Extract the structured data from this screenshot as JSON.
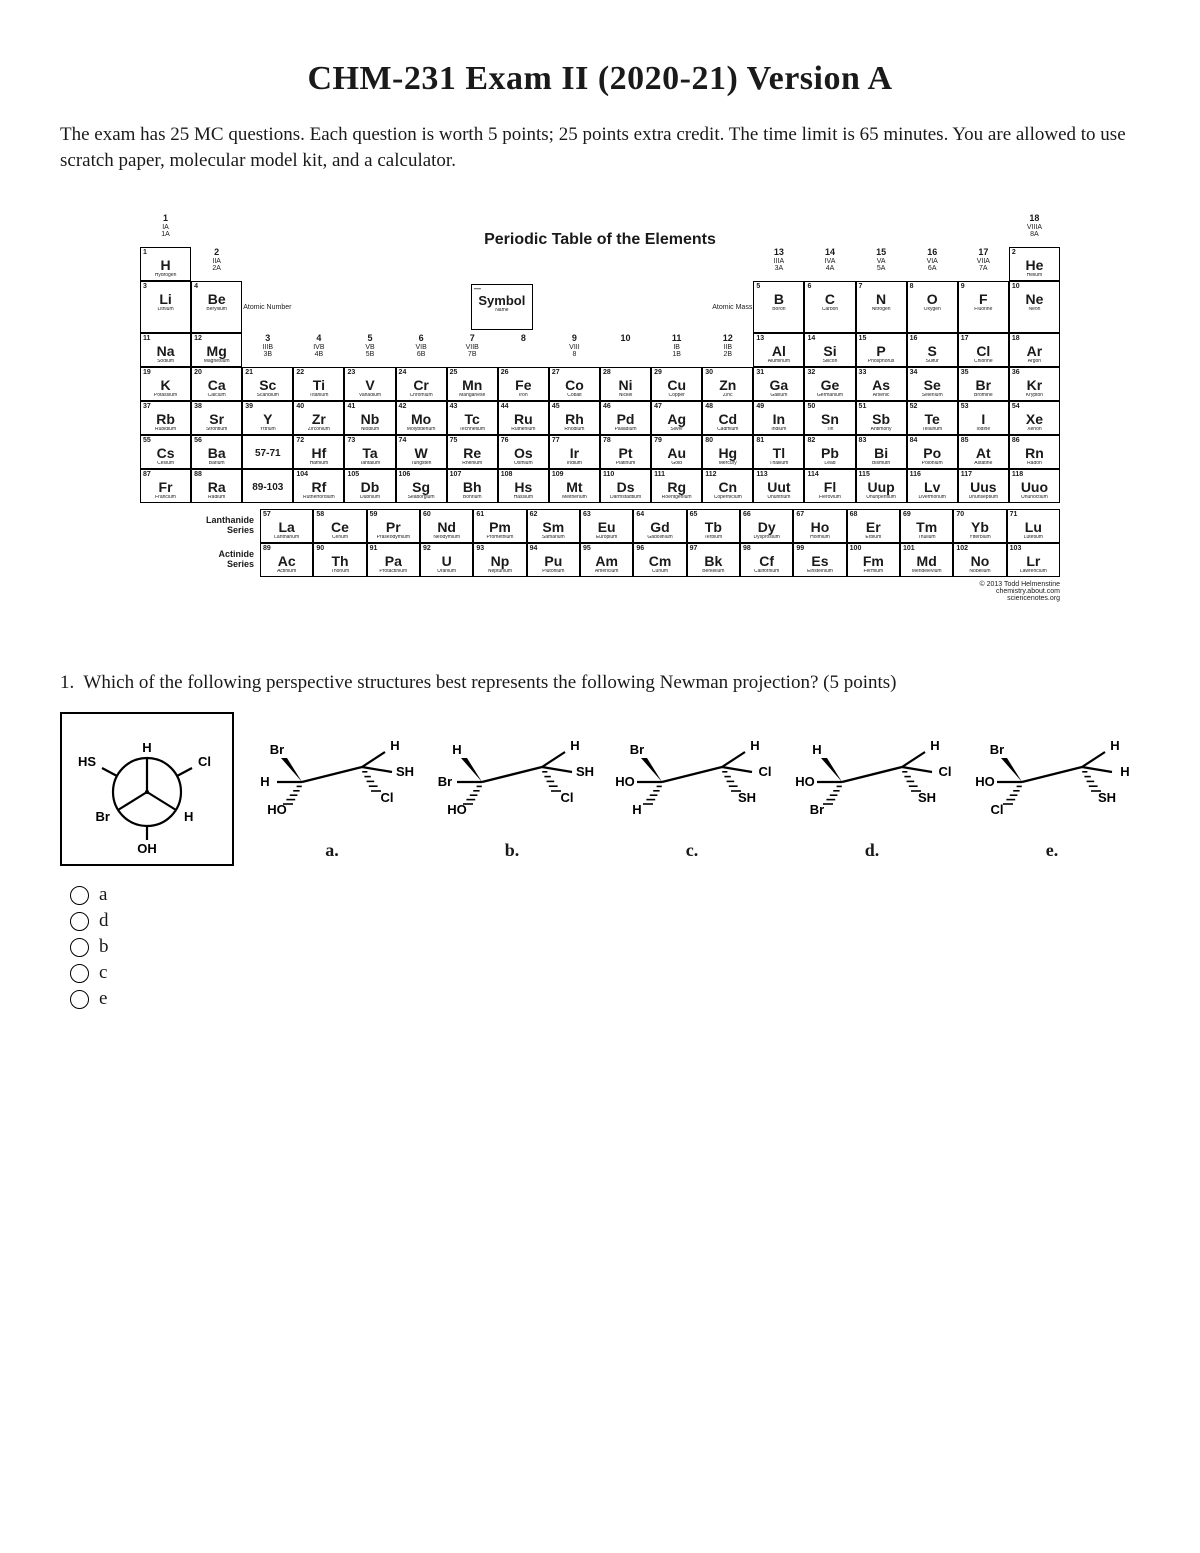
{
  "title": "CHM-231 Exam II (2020-21) Version A",
  "instructions": "The exam has 25 MC questions.  Each question is worth 5 points; 25 points extra credit.  The time limit is 65 minutes.  You are allowed to use scratch paper, molecular model kit, and a calculator.",
  "periodic_table": {
    "heading": "Periodic Table of the Elements",
    "group_top": [
      "1\nIA\n1A"
    ],
    "groups_top_right": {
      "13": "13\nIIIA\n3A",
      "14": "14\nIVA\n4A",
      "15": "15\nVA\n5A",
      "16": "16\nVIA\n6A",
      "17": "17\nVIIA\n7A",
      "18": "18\nVIIIA\n8A"
    },
    "groups_mid": {
      "2": "2\nIIA\n2A",
      "3": "3\nIIIB\n3B",
      "4": "4\nIVB\n4B",
      "5": "5\nVB\n5B",
      "6": "6\nVIB\n6B",
      "7": "7\nVIIB\n7B",
      "8": "8",
      "9": "9\nVIII\n8",
      "10": "10",
      "11": "11\nIB\n1B",
      "12": "12\nIIB\n2B"
    },
    "legend": {
      "top": "Atomic\nNumber",
      "mid": "Symbol",
      "name": "Name",
      "mass": "Atomic Mass"
    },
    "elements": [
      [
        1,
        "H",
        "Hydrogen"
      ],
      [
        2,
        "He",
        "Helium"
      ],
      [
        3,
        "Li",
        "Lithium"
      ],
      [
        4,
        "Be",
        "Beryllium"
      ],
      [
        5,
        "B",
        "Boron"
      ],
      [
        6,
        "C",
        "Carbon"
      ],
      [
        7,
        "N",
        "Nitrogen"
      ],
      [
        8,
        "O",
        "Oxygen"
      ],
      [
        9,
        "F",
        "Fluorine"
      ],
      [
        10,
        "Ne",
        "Neon"
      ],
      [
        11,
        "Na",
        "Sodium"
      ],
      [
        12,
        "Mg",
        "Magnesium"
      ],
      [
        13,
        "Al",
        "Aluminum"
      ],
      [
        14,
        "Si",
        "Silicon"
      ],
      [
        15,
        "P",
        "Phosphorus"
      ],
      [
        16,
        "S",
        "Sulfur"
      ],
      [
        17,
        "Cl",
        "Chlorine"
      ],
      [
        18,
        "Ar",
        "Argon"
      ],
      [
        19,
        "K",
        "Potassium"
      ],
      [
        20,
        "Ca",
        "Calcium"
      ],
      [
        21,
        "Sc",
        "Scandium"
      ],
      [
        22,
        "Ti",
        "Titanium"
      ],
      [
        23,
        "V",
        "Vanadium"
      ],
      [
        24,
        "Cr",
        "Chromium"
      ],
      [
        25,
        "Mn",
        "Manganese"
      ],
      [
        26,
        "Fe",
        "Iron"
      ],
      [
        27,
        "Co",
        "Cobalt"
      ],
      [
        28,
        "Ni",
        "Nickel"
      ],
      [
        29,
        "Cu",
        "Copper"
      ],
      [
        30,
        "Zn",
        "Zinc"
      ],
      [
        31,
        "Ga",
        "Gallium"
      ],
      [
        32,
        "Ge",
        "Germanium"
      ],
      [
        33,
        "As",
        "Arsenic"
      ],
      [
        34,
        "Se",
        "Selenium"
      ],
      [
        35,
        "Br",
        "Bromine"
      ],
      [
        36,
        "Kr",
        "Krypton"
      ],
      [
        37,
        "Rb",
        "Rubidium"
      ],
      [
        38,
        "Sr",
        "Strontium"
      ],
      [
        39,
        "Y",
        "Yttrium"
      ],
      [
        40,
        "Zr",
        "Zirconium"
      ],
      [
        41,
        "Nb",
        "Niobium"
      ],
      [
        42,
        "Mo",
        "Molybdenum"
      ],
      [
        43,
        "Tc",
        "Technetium"
      ],
      [
        44,
        "Ru",
        "Ruthenium"
      ],
      [
        45,
        "Rh",
        "Rhodium"
      ],
      [
        46,
        "Pd",
        "Palladium"
      ],
      [
        47,
        "Ag",
        "Silver"
      ],
      [
        48,
        "Cd",
        "Cadmium"
      ],
      [
        49,
        "In",
        "Indium"
      ],
      [
        50,
        "Sn",
        "Tin"
      ],
      [
        51,
        "Sb",
        "Antimony"
      ],
      [
        52,
        "Te",
        "Tellurium"
      ],
      [
        53,
        "I",
        "Iodine"
      ],
      [
        54,
        "Xe",
        "Xenon"
      ],
      [
        55,
        "Cs",
        "Cesium"
      ],
      [
        56,
        "Ba",
        "Barium"
      ],
      [
        57,
        "57-71",
        ""
      ],
      [
        72,
        "Hf",
        "Hafnium"
      ],
      [
        73,
        "Ta",
        "Tantalum"
      ],
      [
        74,
        "W",
        "Tungsten"
      ],
      [
        75,
        "Re",
        "Rhenium"
      ],
      [
        76,
        "Os",
        "Osmium"
      ],
      [
        77,
        "Ir",
        "Iridium"
      ],
      [
        78,
        "Pt",
        "Platinum"
      ],
      [
        79,
        "Au",
        "Gold"
      ],
      [
        80,
        "Hg",
        "Mercury"
      ],
      [
        81,
        "Tl",
        "Thallium"
      ],
      [
        82,
        "Pb",
        "Lead"
      ],
      [
        83,
        "Bi",
        "Bismuth"
      ],
      [
        84,
        "Po",
        "Polonium"
      ],
      [
        85,
        "At",
        "Astatine"
      ],
      [
        86,
        "Rn",
        "Radon"
      ],
      [
        87,
        "Fr",
        "Francium"
      ],
      [
        88,
        "Ra",
        "Radium"
      ],
      [
        89,
        "89-103",
        ""
      ],
      [
        104,
        "Rf",
        "Rutherfordium"
      ],
      [
        105,
        "Db",
        "Dubnium"
      ],
      [
        106,
        "Sg",
        "Seaborgium"
      ],
      [
        107,
        "Bh",
        "Bohrium"
      ],
      [
        108,
        "Hs",
        "Hassium"
      ],
      [
        109,
        "Mt",
        "Meitnerium"
      ],
      [
        110,
        "Ds",
        "Darmstadtium"
      ],
      [
        111,
        "Rg",
        "Roentgenium"
      ],
      [
        112,
        "Cn",
        "Copernicium"
      ],
      [
        113,
        "Uut",
        "Ununtrium"
      ],
      [
        114,
        "Fl",
        "Flerovium"
      ],
      [
        115,
        "Uup",
        "Ununpentium"
      ],
      [
        116,
        "Lv",
        "Livermorium"
      ],
      [
        117,
        "Uus",
        "Ununseptium"
      ],
      [
        118,
        "Uuo",
        "Ununoctium"
      ]
    ],
    "lanthanide_label": "Lanthanide\nSeries",
    "actinide_label": "Actinide\nSeries",
    "lanth": [
      [
        57,
        "La",
        "Lanthanum"
      ],
      [
        58,
        "Ce",
        "Cerium"
      ],
      [
        59,
        "Pr",
        "Praseodymium"
      ],
      [
        60,
        "Nd",
        "Neodymium"
      ],
      [
        61,
        "Pm",
        "Promethium"
      ],
      [
        62,
        "Sm",
        "Samarium"
      ],
      [
        63,
        "Eu",
        "Europium"
      ],
      [
        64,
        "Gd",
        "Gadolinium"
      ],
      [
        65,
        "Tb",
        "Terbium"
      ],
      [
        66,
        "Dy",
        "Dysprosium"
      ],
      [
        67,
        "Ho",
        "Holmium"
      ],
      [
        68,
        "Er",
        "Erbium"
      ],
      [
        69,
        "Tm",
        "Thulium"
      ],
      [
        70,
        "Yb",
        "Ytterbium"
      ],
      [
        71,
        "Lu",
        "Lutetium"
      ]
    ],
    "actin": [
      [
        89,
        "Ac",
        "Actinium"
      ],
      [
        90,
        "Th",
        "Thorium"
      ],
      [
        91,
        "Pa",
        "Protactinium"
      ],
      [
        92,
        "U",
        "Uranium"
      ],
      [
        93,
        "Np",
        "Neptunium"
      ],
      [
        94,
        "Pu",
        "Plutonium"
      ],
      [
        95,
        "Am",
        "Americium"
      ],
      [
        96,
        "Cm",
        "Curium"
      ],
      [
        97,
        "Bk",
        "Berkelium"
      ],
      [
        98,
        "Cf",
        "Californium"
      ],
      [
        99,
        "Es",
        "Einsteinium"
      ],
      [
        100,
        "Fm",
        "Fermium"
      ],
      [
        101,
        "Md",
        "Mendelevium"
      ],
      [
        102,
        "No",
        "Nobelium"
      ],
      [
        103,
        "Lr",
        "Lawrencium"
      ]
    ],
    "credit": "© 2013 Todd Helmenstine\nchemistry.about.com\nsciencenotes.org"
  },
  "question": {
    "number": "1.",
    "text": "Which of the following perspective structures best represents the following Newman projection? (5 points)",
    "newman": {
      "front_up": "H",
      "front_left": "Br",
      "front_right": "H",
      "back_left": "HS",
      "back_right": "Cl",
      "back_down": "OH"
    },
    "options": [
      {
        "key": "a.",
        "c1": {
          "wu": "Br",
          "wd": "HO",
          "l": "H"
        },
        "c2": {
          "wu": "",
          "wd": "Cl",
          "l": "H",
          "r": "SH"
        }
      },
      {
        "key": "b.",
        "c1": {
          "wu": "H",
          "wd": "HO",
          "l": "Br"
        },
        "c2": {
          "wu": "",
          "wd": "Cl",
          "l": "H",
          "r": "SH"
        }
      },
      {
        "key": "c.",
        "c1": {
          "wu": "Br",
          "wd": "H",
          "l": "HO"
        },
        "c2": {
          "wu": "",
          "wd": "SH",
          "l": "H",
          "r": "Cl"
        }
      },
      {
        "key": "d.",
        "c1": {
          "wu": "H",
          "wd": "Br",
          "l": "HO"
        },
        "c2": {
          "wu": "",
          "wd": "SH",
          "l": "H",
          "r": "Cl"
        }
      },
      {
        "key": "e.",
        "c1": {
          "wu": "Br",
          "wd": "Cl",
          "l": "HO"
        },
        "c2": {
          "wu": "",
          "wd": "SH",
          "l": "H",
          "r": "H"
        }
      }
    ],
    "answers": [
      "a",
      "d",
      "b",
      "c",
      "e"
    ]
  }
}
